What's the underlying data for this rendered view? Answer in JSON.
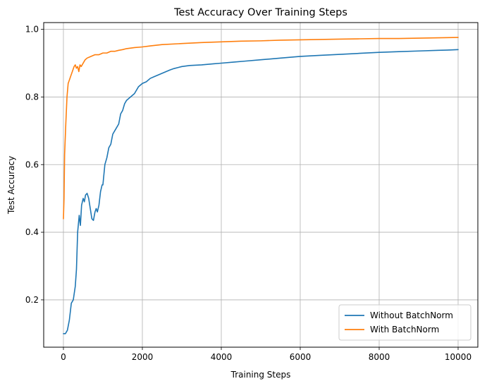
{
  "chart_data": {
    "type": "line",
    "title": "Test Accuracy Over Training Steps",
    "xlabel": "Training Steps",
    "ylabel": "Test Accuracy",
    "xlim": [
      -500,
      10500
    ],
    "ylim": [
      0.06,
      1.02
    ],
    "xticks": [
      0,
      2000,
      4000,
      6000,
      8000,
      10000
    ],
    "xtick_labels": [
      "0",
      "2000",
      "4000",
      "6000",
      "8000",
      "10000"
    ],
    "yticks": [
      0.2,
      0.4,
      0.6,
      0.8,
      1.0
    ],
    "ytick_labels": [
      "0.2",
      "0.4",
      "0.6",
      "0.8",
      "1.0"
    ],
    "grid": true,
    "legend_position": "lower-right",
    "series": [
      {
        "name": "Without BatchNorm",
        "color": "#1f77b4",
        "x": [
          0,
          50,
          100,
          150,
          200,
          250,
          300,
          330,
          360,
          400,
          430,
          460,
          500,
          530,
          560,
          600,
          640,
          680,
          720,
          760,
          800,
          830,
          860,
          900,
          940,
          980,
          1000,
          1050,
          1100,
          1150,
          1200,
          1250,
          1300,
          1350,
          1400,
          1450,
          1500,
          1550,
          1600,
          1700,
          1800,
          1900,
          2000,
          2100,
          2200,
          2300,
          2400,
          2500,
          2600,
          2700,
          2800,
          2900,
          3000,
          3200,
          3500,
          3800,
          4000,
          4300,
          4600,
          5000,
          5500,
          6000,
          6500,
          7000,
          7500,
          8000,
          8500,
          9000,
          9500,
          9800,
          10000
        ],
        "y": [
          0.1,
          0.1,
          0.11,
          0.14,
          0.19,
          0.2,
          0.24,
          0.29,
          0.4,
          0.45,
          0.42,
          0.48,
          0.5,
          0.49,
          0.51,
          0.515,
          0.5,
          0.47,
          0.44,
          0.435,
          0.46,
          0.47,
          0.46,
          0.48,
          0.52,
          0.54,
          0.54,
          0.6,
          0.62,
          0.65,
          0.66,
          0.69,
          0.7,
          0.71,
          0.72,
          0.75,
          0.76,
          0.78,
          0.79,
          0.8,
          0.81,
          0.83,
          0.84,
          0.845,
          0.855,
          0.86,
          0.865,
          0.87,
          0.875,
          0.88,
          0.884,
          0.887,
          0.89,
          0.893,
          0.895,
          0.898,
          0.9,
          0.903,
          0.906,
          0.91,
          0.915,
          0.92,
          0.923,
          0.926,
          0.929,
          0.932,
          0.934,
          0.936,
          0.938,
          0.939,
          0.94
        ]
      },
      {
        "name": "With BatchNorm",
        "color": "#ff7f0e",
        "x": [
          0,
          15,
          30,
          60,
          90,
          120,
          150,
          180,
          210,
          240,
          270,
          300,
          330,
          360,
          390,
          420,
          450,
          500,
          550,
          600,
          700,
          800,
          900,
          1000,
          1100,
          1200,
          1300,
          1400,
          1500,
          1600,
          1800,
          2000,
          2200,
          2500,
          3000,
          3500,
          4000,
          4500,
          5000,
          5500,
          6000,
          6500,
          7000,
          7500,
          8000,
          8500,
          9000,
          9500,
          10000
        ],
        "y": [
          0.44,
          0.5,
          0.63,
          0.72,
          0.8,
          0.84,
          0.85,
          0.86,
          0.87,
          0.88,
          0.89,
          0.895,
          0.885,
          0.89,
          0.875,
          0.895,
          0.89,
          0.9,
          0.91,
          0.915,
          0.92,
          0.925,
          0.925,
          0.93,
          0.93,
          0.935,
          0.935,
          0.938,
          0.94,
          0.943,
          0.946,
          0.948,
          0.951,
          0.955,
          0.958,
          0.961,
          0.963,
          0.965,
          0.966,
          0.968,
          0.969,
          0.97,
          0.971,
          0.972,
          0.973,
          0.973,
          0.974,
          0.975,
          0.976
        ]
      }
    ]
  }
}
